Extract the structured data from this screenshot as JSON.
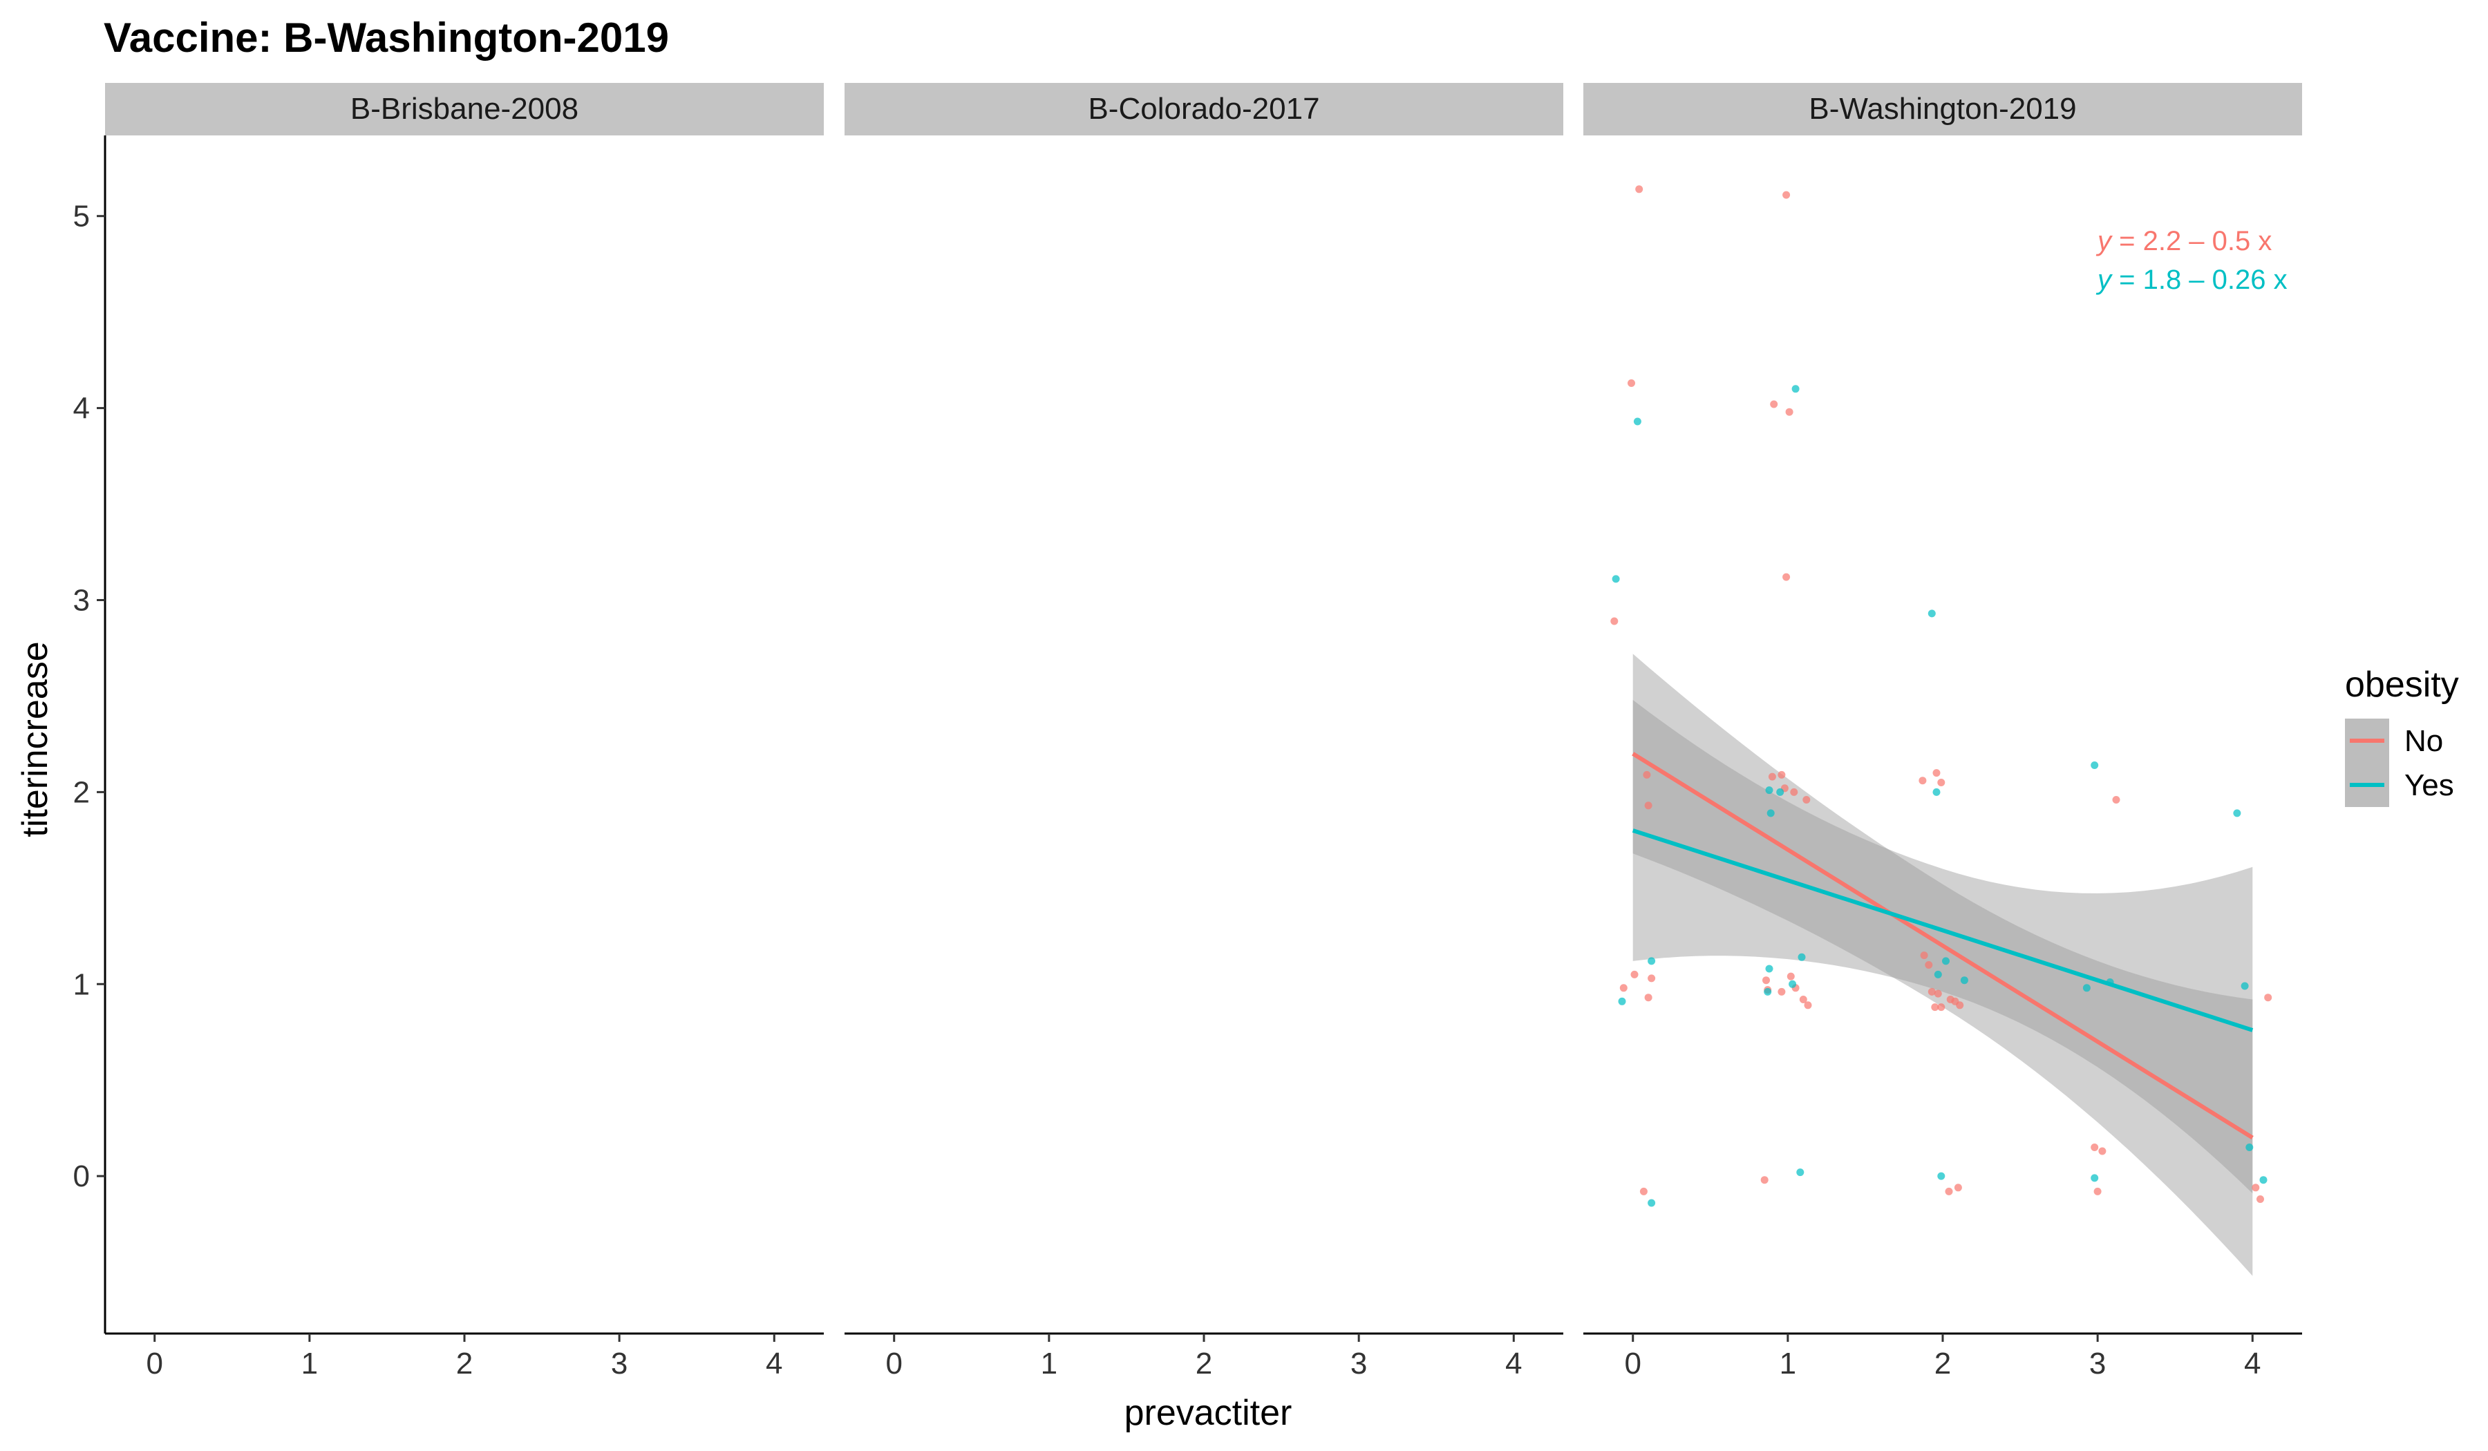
{
  "chart_data": {
    "type": "scatter",
    "title": "Vaccine: B-Washington-2019",
    "xlabel": "prevactiter",
    "ylabel": "titerincrease",
    "xlim": [
      -0.32,
      4.32
    ],
    "ylim": [
      -0.82,
      5.42
    ],
    "x_ticks": [
      "0",
      "1",
      "2",
      "3",
      "4"
    ],
    "y_ticks": [
      "0",
      "1",
      "2",
      "3",
      "4",
      "5"
    ],
    "grid": false,
    "facets": [
      "B-Brisbane-2008",
      "B-Colorado-2017",
      "B-Washington-2019"
    ],
    "legend": {
      "title": "obesity",
      "position": "right",
      "entries": [
        {
          "label": "No",
          "color": "#F8766D"
        },
        {
          "label": "Yes",
          "color": "#00BFC4"
        }
      ]
    },
    "equations": [
      {
        "prefix": "y",
        "text": " = 2.2 – 0.5 x",
        "color": "#F8766D"
      },
      {
        "prefix": "y",
        "text": " = 1.8 – 0.26 x",
        "color": "#00BFC4"
      }
    ],
    "series": [
      {
        "name": "No",
        "color": "#F8766D",
        "facet": "B-Washington-2019",
        "fit": {
          "intercept": 2.2,
          "slope": -0.5
        },
        "ribbon_half_width": {
          "at_x0": 0.52,
          "at_x4": 0.72
        },
        "points": [
          [
            0.04,
            5.14
          ],
          [
            -0.01,
            4.13
          ],
          [
            0.91,
            4.02
          ],
          [
            0.99,
            5.11
          ],
          [
            1.01,
            3.98
          ],
          [
            0.99,
            3.12
          ],
          [
            -0.12,
            2.89
          ],
          [
            0.09,
            2.09
          ],
          [
            0.1,
            1.93
          ],
          [
            0.9,
            2.08
          ],
          [
            0.96,
            2.09
          ],
          [
            0.98,
            2.02
          ],
          [
            1.04,
            2.0
          ],
          [
            1.12,
            1.96
          ],
          [
            1.87,
            2.06
          ],
          [
            1.96,
            2.1
          ],
          [
            1.99,
            2.05
          ],
          [
            3.12,
            1.96
          ],
          [
            -0.06,
            0.98
          ],
          [
            0.01,
            1.05
          ],
          [
            0.1,
            0.93
          ],
          [
            0.12,
            1.03
          ],
          [
            0.86,
            1.02
          ],
          [
            0.87,
            0.97
          ],
          [
            0.96,
            0.96
          ],
          [
            1.02,
            1.04
          ],
          [
            1.05,
            0.98
          ],
          [
            1.1,
            0.92
          ],
          [
            1.13,
            0.89
          ],
          [
            1.88,
            1.15
          ],
          [
            1.91,
            1.1
          ],
          [
            1.93,
            0.96
          ],
          [
            1.95,
            0.88
          ],
          [
            1.97,
            0.95
          ],
          [
            1.99,
            0.88
          ],
          [
            2.05,
            0.92
          ],
          [
            2.08,
            0.91
          ],
          [
            2.11,
            0.89
          ],
          [
            0.07,
            -0.08
          ],
          [
            0.85,
            -0.02
          ],
          [
            2.04,
            -0.08
          ],
          [
            2.1,
            -0.06
          ],
          [
            2.98,
            0.15
          ],
          [
            3.03,
            0.13
          ],
          [
            3.0,
            -0.08
          ],
          [
            4.02,
            -0.06
          ],
          [
            4.05,
            -0.12
          ],
          [
            4.1,
            0.93
          ]
        ]
      },
      {
        "name": "Yes",
        "color": "#00BFC4",
        "facet": "B-Washington-2019",
        "fit": {
          "intercept": 1.8,
          "slope": -0.26
        },
        "ribbon_half_width": {
          "at_x0": 0.68,
          "at_x4": 0.85
        },
        "points": [
          [
            0.03,
            3.93
          ],
          [
            1.05,
            4.1
          ],
          [
            -0.11,
            3.11
          ],
          [
            1.93,
            2.93
          ],
          [
            2.98,
            2.14
          ],
          [
            3.9,
            1.89
          ],
          [
            0.88,
            2.01
          ],
          [
            0.89,
            1.89
          ],
          [
            0.95,
            2.0
          ],
          [
            1.96,
            2.0
          ],
          [
            0.12,
            1.12
          ],
          [
            -0.07,
            0.91
          ],
          [
            0.88,
            1.08
          ],
          [
            0.87,
            0.96
          ],
          [
            1.03,
            1.0
          ],
          [
            1.09,
            1.14
          ],
          [
            1.97,
            1.05
          ],
          [
            2.02,
            1.12
          ],
          [
            2.14,
            1.02
          ],
          [
            2.93,
            0.98
          ],
          [
            3.08,
            1.01
          ],
          [
            3.95,
            0.99
          ],
          [
            3.98,
            0.15
          ],
          [
            0.12,
            -0.14
          ],
          [
            1.08,
            0.02
          ],
          [
            1.99,
            0.0
          ],
          [
            2.98,
            -0.01
          ],
          [
            4.07,
            -0.02
          ]
        ]
      }
    ]
  }
}
